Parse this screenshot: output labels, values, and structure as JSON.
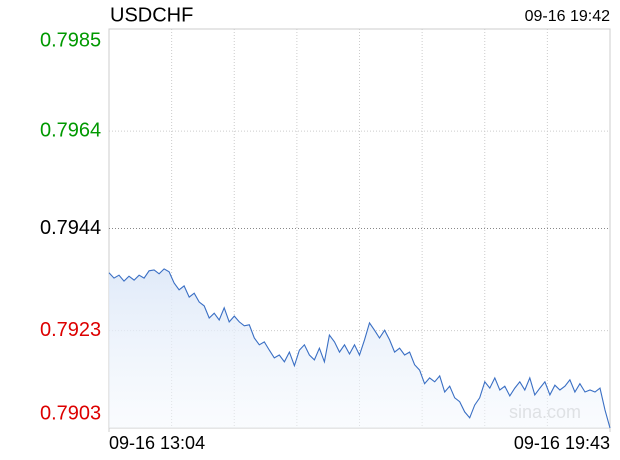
{
  "chart_data": {
    "type": "line",
    "title": "USDCHF",
    "timestamp": "09-16 19:42",
    "watermark": "sina.com",
    "values": [
      0.79349,
      0.79338,
      0.79344,
      0.79332,
      0.79342,
      0.79334,
      0.79344,
      0.79338,
      0.79353,
      0.79355,
      0.79347,
      0.79357,
      0.79351,
      0.79328,
      0.79314,
      0.79322,
      0.79299,
      0.79307,
      0.79289,
      0.79281,
      0.79256,
      0.79266,
      0.79252,
      0.79277,
      0.79248,
      0.7926,
      0.79248,
      0.7924,
      0.79242,
      0.79215,
      0.79201,
      0.79207,
      0.7919,
      0.79174,
      0.7918,
      0.79166,
      0.79186,
      0.79158,
      0.7919,
      0.79201,
      0.7918,
      0.7917,
      0.79194,
      0.79166,
      0.79221,
      0.79207,
      0.79186,
      0.79201,
      0.79182,
      0.79201,
      0.7918,
      0.79211,
      0.79246,
      0.79231,
      0.79215,
      0.79231,
      0.79211,
      0.79186,
      0.79194,
      0.7918,
      0.79186,
      0.7916,
      0.79149,
      0.79121,
      0.79133,
      0.79125,
      0.79137,
      0.79104,
      0.79116,
      0.79092,
      0.79084,
      0.79063,
      0.79051,
      0.79077,
      0.79092,
      0.79125,
      0.79112,
      0.79133,
      0.79108,
      0.79116,
      0.79096,
      0.79112,
      0.79125,
      0.79108,
      0.79133,
      0.79098,
      0.79112,
      0.79125,
      0.79098,
      0.79118,
      0.79108,
      0.79116,
      0.79129,
      0.79104,
      0.79121,
      0.79104,
      0.79108,
      0.79104,
      0.79112,
      0.79067,
      0.7903
    ],
    "color": "#3a6fc4",
    "xlim": [
      0,
      100
    ],
    "xticks": [
      {
        "value": 0,
        "label": "09-16 13:04"
      },
      {
        "value": 100,
        "label": "09-16 19:43"
      }
    ],
    "xgrid_divisions": 8,
    "ylim": [
      0.7903,
      0.7985
    ],
    "yticks": [
      0.7985,
      0.7964,
      0.7944,
      0.7923,
      0.7903
    ],
    "ytick_colors": [
      "#009900",
      "#009900",
      "#000000",
      "#dd0000",
      "#dd0000"
    ],
    "grid": true
  }
}
